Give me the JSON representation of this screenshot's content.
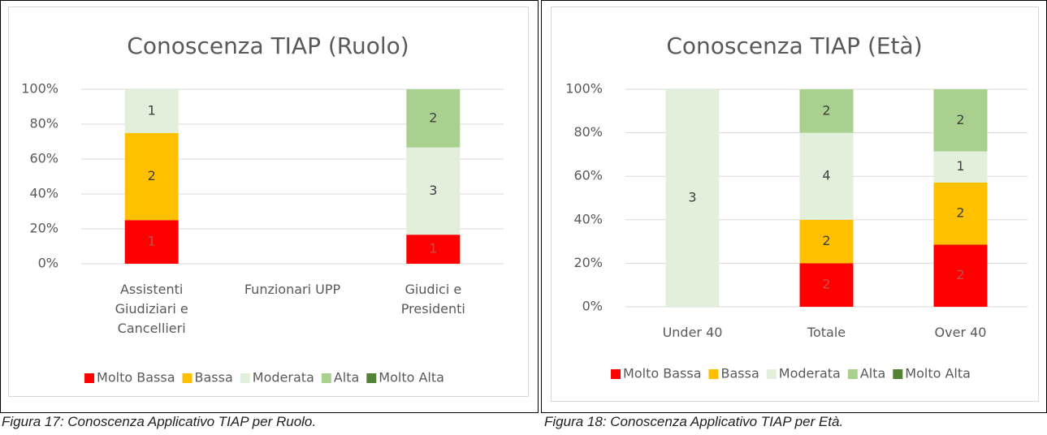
{
  "chart_data": [
    {
      "type": "bar",
      "stacked": "percent",
      "title": "Conoscenza TIAP (Ruolo)",
      "categories": [
        "Assistenti Giudiziari e Cancellieri",
        "Funzionari UPP",
        "Giudici e Presidenti"
      ],
      "series": [
        {
          "name": "Molto Bassa",
          "color": "#ff0000",
          "values": [
            1,
            null,
            1
          ]
        },
        {
          "name": "Bassa",
          "color": "#ffc000",
          "values": [
            2,
            null,
            null
          ]
        },
        {
          "name": "Moderata",
          "color": "#e2efda",
          "values": [
            1,
            null,
            3
          ]
        },
        {
          "name": "Alta",
          "color": "#a9d08e",
          "values": [
            null,
            null,
            2
          ]
        },
        {
          "name": "Molto Alta",
          "color": "#548235",
          "values": [
            null,
            null,
            null
          ]
        }
      ],
      "ylim": [
        0,
        100
      ],
      "yticks": [
        {
          "value": 0,
          "label": "0%"
        },
        {
          "value": 20,
          "label": "20%"
        },
        {
          "value": 40,
          "label": "40%"
        },
        {
          "value": 60,
          "label": "60%"
        },
        {
          "value": 80,
          "label": "80%"
        },
        {
          "value": 100,
          "label": "100%"
        }
      ],
      "grid": true,
      "legend": "bottom"
    },
    {
      "type": "bar",
      "stacked": "percent",
      "title": "Conoscenza TIAP (Età)",
      "categories": [
        "Under 40",
        "Totale",
        "Over 40"
      ],
      "series": [
        {
          "name": "Molto Bassa",
          "color": "#ff0000",
          "values": [
            null,
            2,
            2
          ]
        },
        {
          "name": "Bassa",
          "color": "#ffc000",
          "values": [
            null,
            2,
            2
          ]
        },
        {
          "name": "Moderata",
          "color": "#e2efda",
          "values": [
            3,
            4,
            1
          ]
        },
        {
          "name": "Alta",
          "color": "#a9d08e",
          "values": [
            null,
            2,
            2
          ]
        },
        {
          "name": "Molto Alta",
          "color": "#548235",
          "values": [
            null,
            null,
            null
          ]
        }
      ],
      "ylim": [
        0,
        100
      ],
      "yticks": [
        {
          "value": 0,
          "label": "0%"
        },
        {
          "value": 20,
          "label": "20%"
        },
        {
          "value": 40,
          "label": "40%"
        },
        {
          "value": 60,
          "label": "60%"
        },
        {
          "value": 80,
          "label": "80%"
        },
        {
          "value": 100,
          "label": "100%"
        }
      ],
      "grid": true,
      "legend": "bottom"
    }
  ],
  "captions": [
    "Figura 17: Conoscenza Applicativo TIAP per Ruolo.",
    "Figura 18: Conoscenza Applicativo TIAP per Età."
  ]
}
